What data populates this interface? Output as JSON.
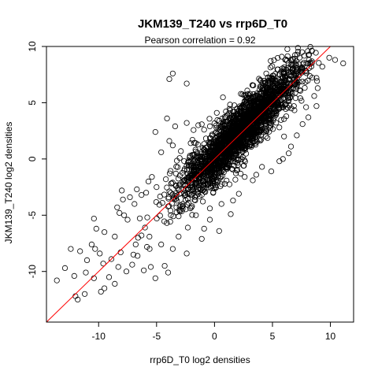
{
  "chart_data": {
    "type": "scatter",
    "title": "JKM139_T240 vs rrp6D_T0",
    "subtitle": "Pearson correlation =  0.92",
    "xlabel": "rrp6D_T0 log2 densities",
    "ylabel": "JKM139_T240 log2 densities",
    "xlim": [
      -14.5,
      12
    ],
    "ylim": [
      -14.5,
      10
    ],
    "x_ticks": [
      -10,
      -5,
      0,
      5,
      10
    ],
    "y_ticks": [
      -10,
      -5,
      0,
      5,
      10
    ],
    "x_tick_labels": [
      "-10",
      "-5",
      "0",
      "5",
      "10"
    ],
    "y_tick_labels": [
      "-10",
      "-5",
      "0",
      "5",
      "10"
    ],
    "grid": false,
    "point_style": "open-circle",
    "point_color": "#000000",
    "reference_line": {
      "slope": 1,
      "intercept": 0,
      "color": "#ff0000"
    },
    "series": [
      {
        "points": [
          [
            -13.6,
            -10.8
          ],
          [
            -12.0,
            -12.2
          ],
          [
            -11.8,
            -12.5
          ],
          [
            -11.2,
            -12.0
          ],
          [
            -12.9,
            -9.7
          ],
          [
            -11.0,
            -9.0
          ],
          [
            -10.3,
            -8.0
          ],
          [
            -9.8,
            -11.8
          ],
          [
            -9.5,
            -11.5
          ],
          [
            -10.2,
            -6.2
          ],
          [
            -8.2,
            -4.8
          ],
          [
            -7.8,
            -5.0
          ],
          [
            -7.5,
            -5.4
          ],
          [
            -7.9,
            -3.6
          ],
          [
            -8.0,
            -2.8
          ],
          [
            -7.3,
            -3.4
          ],
          [
            -5.9,
            -3.0
          ],
          [
            -5.0,
            -2.5
          ],
          [
            -5.8,
            -5.2
          ],
          [
            -6.3,
            -6.8
          ],
          [
            -6.8,
            -7.6
          ],
          [
            -7.0,
            -8.5
          ],
          [
            -5.5,
            -9.6
          ],
          [
            -4.3,
            -9.5
          ],
          [
            -4.0,
            -10.1
          ],
          [
            -2.4,
            -8.4
          ],
          [
            -1.6,
            -5.0
          ],
          [
            -1.1,
            -3.2
          ],
          [
            -0.4,
            -4.4
          ],
          [
            0.6,
            -4.0
          ],
          [
            1.6,
            -3.7
          ],
          [
            2.1,
            -3.1
          ],
          [
            1.4,
            -4.9
          ],
          [
            3.3,
            -1.9
          ],
          [
            3.6,
            -1.4
          ],
          [
            4.1,
            -0.7
          ],
          [
            5.6,
            -0.2
          ],
          [
            6.4,
            0.5
          ],
          [
            6.0,
            2.0
          ],
          [
            7.1,
            2.1
          ],
          [
            7.6,
            3.1
          ],
          [
            8.1,
            3.7
          ],
          [
            8.8,
            4.7
          ],
          [
            8.9,
            6.3
          ],
          [
            8.8,
            7.2
          ],
          [
            7.6,
            7.9
          ],
          [
            7.1,
            6.6
          ],
          [
            6.3,
            6.4
          ],
          [
            5.3,
            6.9
          ],
          [
            5.6,
            4.5
          ],
          [
            4.4,
            5.9
          ],
          [
            3.4,
            4.9
          ],
          [
            2.6,
            5.1
          ],
          [
            2.8,
            3.6
          ],
          [
            1.9,
            3.2
          ],
          [
            1.1,
            3.9
          ],
          [
            0.2,
            4.1
          ],
          [
            -0.4,
            2.9
          ],
          [
            -0.9,
            2.6
          ],
          [
            -1.9,
            1.7
          ],
          [
            -2.4,
            3.2
          ],
          [
            -3.4,
            2.9
          ],
          [
            -3.9,
            1.6
          ],
          [
            -2.9,
            0.7
          ],
          [
            -4.6,
            0.6
          ],
          [
            -5.1,
            2.4
          ],
          [
            -3.6,
            7.6
          ],
          [
            -3.9,
            7.1
          ],
          [
            -2.4,
            6.7
          ],
          [
            -4.1,
            3.6
          ],
          [
            -0.4,
            -5.4
          ],
          [
            0.4,
            -6.4
          ],
          [
            -1.1,
            -7.1
          ],
          [
            -2.3,
            -6.1
          ],
          [
            -3.1,
            -6.9
          ],
          [
            -3.6,
            -8.0
          ],
          [
            -4.6,
            -7.6
          ],
          [
            -5.6,
            -8.0
          ],
          [
            -6.0,
            -6.1
          ],
          [
            -6.6,
            -7.0
          ],
          [
            -8.1,
            -8.3
          ],
          [
            -8.9,
            -8.9
          ],
          [
            -9.6,
            -9.3
          ],
          [
            -10.4,
            -10.6
          ],
          [
            -11.1,
            -10.1
          ],
          [
            -12.1,
            -10.4
          ],
          [
            -9.9,
            -8.4
          ],
          [
            -8.6,
            -6.9
          ],
          [
            -8.3,
            -9.6
          ],
          [
            -8.6,
            -11.1
          ],
          [
            -9.1,
            -10.5
          ],
          [
            -7.6,
            -10.0
          ],
          [
            -7.1,
            -9.4
          ],
          [
            -6.1,
            -9.9
          ],
          [
            -5.1,
            -10.6
          ],
          [
            -10.6,
            -7.6
          ],
          [
            -11.6,
            -8.2
          ],
          [
            -12.4,
            -8.0
          ],
          [
            -10.4,
            -5.3
          ],
          [
            -9.5,
            -6.5
          ],
          [
            -8.4,
            -4.3
          ],
          [
            -6.9,
            -4.0
          ],
          [
            -6.3,
            -3.2
          ],
          [
            -6.7,
            -2.7
          ],
          [
            -5.7,
            -2.0
          ],
          [
            -4.2,
            -1.8
          ],
          [
            -4.5,
            -3.9
          ],
          [
            -3.8,
            -4.6
          ],
          [
            -3.1,
            -5.1
          ],
          [
            -2.0,
            -4.3
          ],
          [
            -0.9,
            -6.2
          ],
          [
            2.6,
            -1.6
          ],
          [
            4.9,
            -1.1
          ],
          [
            5.9,
            0.0
          ],
          [
            6.6,
            1.1
          ],
          [
            7.9,
            4.6
          ],
          [
            9.3,
            8.2
          ],
          [
            10.4,
            8.8
          ],
          [
            11.1,
            8.5
          ],
          [
            9.9,
            9.0
          ],
          [
            8.6,
            5.6
          ],
          [
            7.4,
            5.4
          ],
          [
            4.6,
            5.3
          ],
          [
            1.6,
            4.2
          ],
          [
            -1.4,
            3.0
          ],
          [
            -3.6,
            1.2
          ],
          [
            -2.6,
            -1.9
          ],
          [
            -5.4,
            -1.6
          ],
          [
            -2.3,
            -2.7
          ],
          [
            0.9,
            -2.2
          ]
        ],
        "dense_core": {
          "slope": 1.02,
          "intercept": 0.2,
          "x_range": [
            -9,
            9
          ],
          "spread": 1.2,
          "count": 2400
        }
      }
    ]
  }
}
